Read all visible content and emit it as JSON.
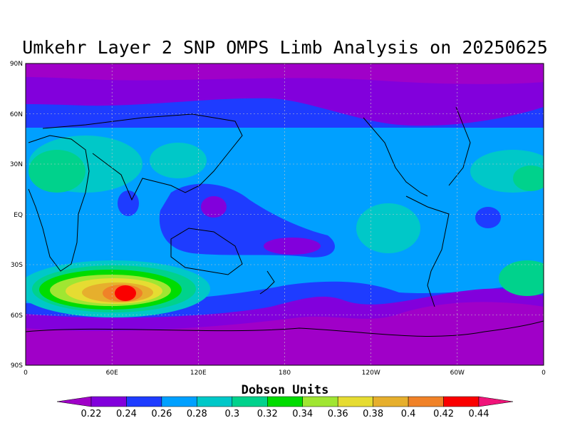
{
  "title": "Umkehr Layer 2 SNP OMPS Limb Analysis on 20250625",
  "lat_ticks": [
    "90N",
    "60N",
    "30N",
    "EQ",
    "30S",
    "60S",
    "90S"
  ],
  "lon_ticks": [
    "0",
    "60E",
    "120E",
    "180",
    "120W",
    "60W",
    "0"
  ],
  "colorbar": {
    "unit_label": "Dobson Units",
    "levels": [
      "0.22",
      "0.24",
      "0.26",
      "0.28",
      "0.3",
      "0.32",
      "0.34",
      "0.36",
      "0.38",
      "0.4",
      "0.42",
      "0.44"
    ],
    "colors": [
      "#a000c8",
      "#8200dc",
      "#1e3cff",
      "#00a0ff",
      "#00c8c8",
      "#00d28c",
      "#00dc00",
      "#a0e632",
      "#e6dc32",
      "#e6af2d",
      "#f08228",
      "#fa0000",
      "#f0147a"
    ]
  },
  "field_colors": {
    "purple": "#a000c8",
    "violet": "#8200dc",
    "blue": "#1e3cff",
    "skyblue": "#00a0ff",
    "cyan": "#00c8c8",
    "teal": "#00d28c",
    "green": "#00dc00",
    "lime": "#a0e632",
    "yellow": "#e6dc32",
    "orange": "#e6af2d",
    "darkorange": "#f08228",
    "red": "#fa0000"
  }
}
